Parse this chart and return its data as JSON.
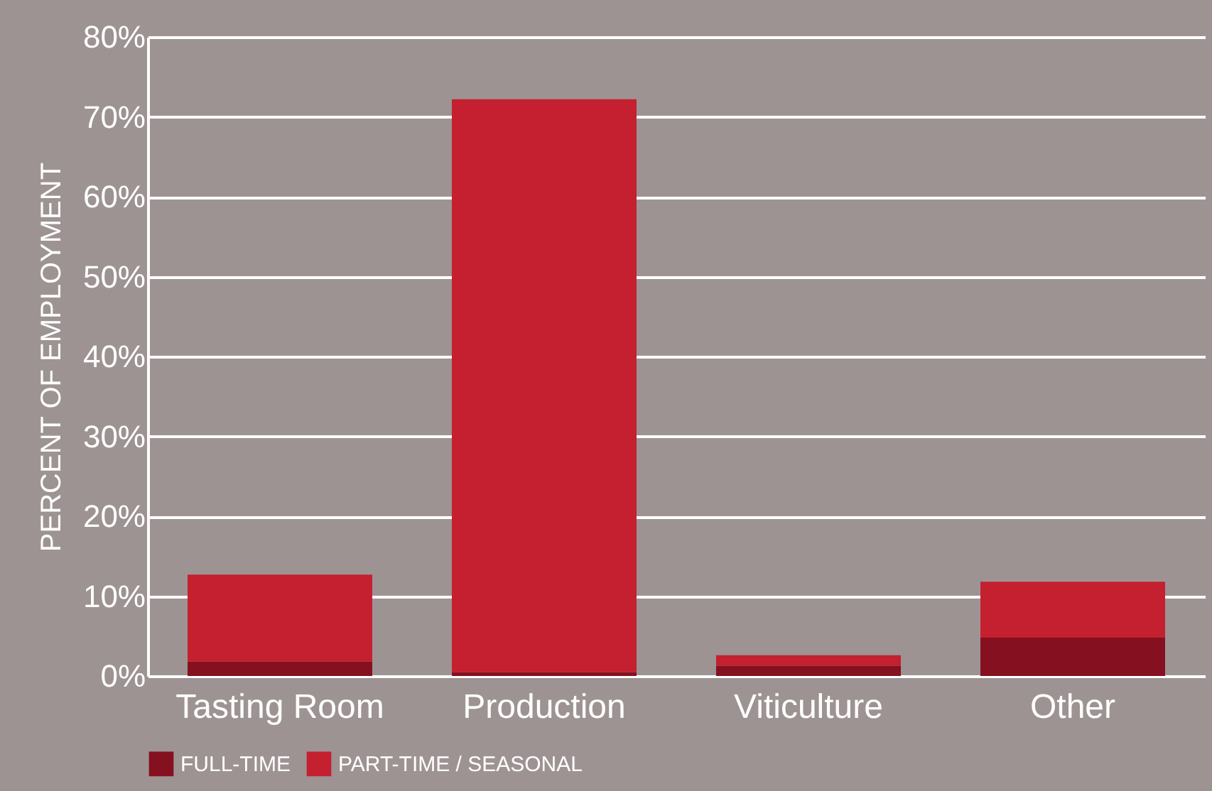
{
  "chart_data": {
    "type": "bar",
    "ylabel": "PERCENT OF EMPLOYMENT",
    "categories": [
      "Tasting Room",
      "Production",
      "Viticulture",
      "Other"
    ],
    "stacked": true,
    "series": [
      {
        "name": "FULL-TIME",
        "color": "#85101f",
        "values": [
          1.8,
          0.5,
          1.3,
          4.8
        ]
      },
      {
        "name": "PART-TIME / SEASONAL",
        "color": "#c42030",
        "values": [
          10.9,
          71.7,
          1.3,
          7.0
        ]
      }
    ],
    "ylim": [
      0,
      80
    ],
    "yticks": [
      {
        "value": 0,
        "label": "0%"
      },
      {
        "value": 10,
        "label": "10%"
      },
      {
        "value": 20,
        "label": "20%"
      },
      {
        "value": 30,
        "label": "30%"
      },
      {
        "value": 40,
        "label": "40%"
      },
      {
        "value": 50,
        "label": "50%"
      },
      {
        "value": 60,
        "label": "60%"
      },
      {
        "value": 70,
        "label": "70%"
      },
      {
        "value": 80,
        "label": "80%"
      }
    ],
    "grid": "y",
    "legend": "bottom"
  }
}
